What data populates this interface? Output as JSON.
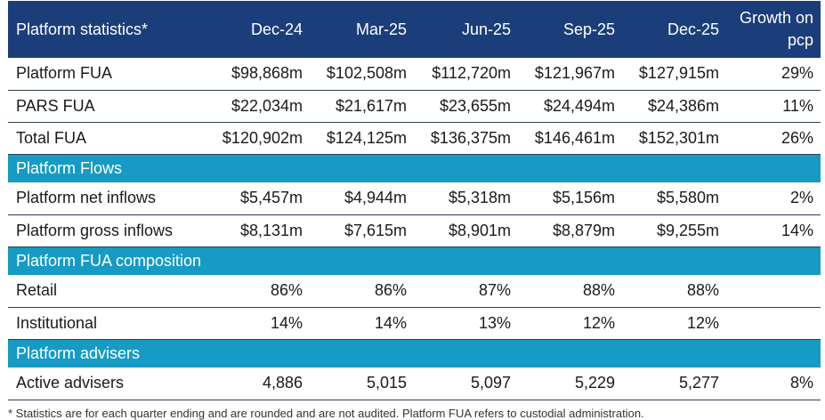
{
  "table": {
    "header": {
      "label": "Platform statistics*",
      "periods": [
        "Dec-24",
        "Mar-25",
        "Jun-25",
        "Sep-25",
        "Dec-25"
      ],
      "growth_line1": "Growth on",
      "growth_line2": "pcp"
    },
    "fua_rows": [
      {
        "label": "Platform FUA",
        "values": [
          "$98,868m",
          "$102,508m",
          "$112,720m",
          "$121,967m",
          "$127,915m"
        ],
        "growth": "29%"
      },
      {
        "label": "PARS FUA",
        "values": [
          "$22,034m",
          "$21,617m",
          "$23,655m",
          "$24,494m",
          "$24,386m"
        ],
        "growth": "11%"
      },
      {
        "label": "Total FUA",
        "values": [
          "$120,902m",
          "$124,125m",
          "$136,375m",
          "$146,461m",
          "$152,301m"
        ],
        "growth": "26%"
      }
    ],
    "flows_section": "Platform Flows",
    "flows_rows": [
      {
        "label": "Platform net inflows",
        "values": [
          "$5,457m",
          "$4,944m",
          "$5,318m",
          "$5,156m",
          "$5,580m"
        ],
        "growth": "2%"
      },
      {
        "label": "Platform gross inflows",
        "values": [
          "$8,131m",
          "$7,615m",
          "$8,901m",
          "$8,879m",
          "$9,255m"
        ],
        "growth": "14%"
      }
    ],
    "composition_section": "Platform FUA composition",
    "composition_rows": [
      {
        "label": "Retail",
        "values": [
          "86%",
          "86%",
          "87%",
          "88%",
          "88%"
        ],
        "growth": ""
      },
      {
        "label": "Institutional",
        "values": [
          "14%",
          "14%",
          "13%",
          "12%",
          "12%"
        ],
        "growth": ""
      }
    ],
    "advisers_section": "Platform advisers",
    "advisers_rows": [
      {
        "label": "Active advisers",
        "values": [
          "4,886",
          "5,015",
          "5,097",
          "5,229",
          "5,277"
        ],
        "growth": "8%"
      }
    ]
  },
  "footnote": "* Statistics are for each quarter ending and are rounded and are not audited. Platform FUA refers to custodial administration."
}
